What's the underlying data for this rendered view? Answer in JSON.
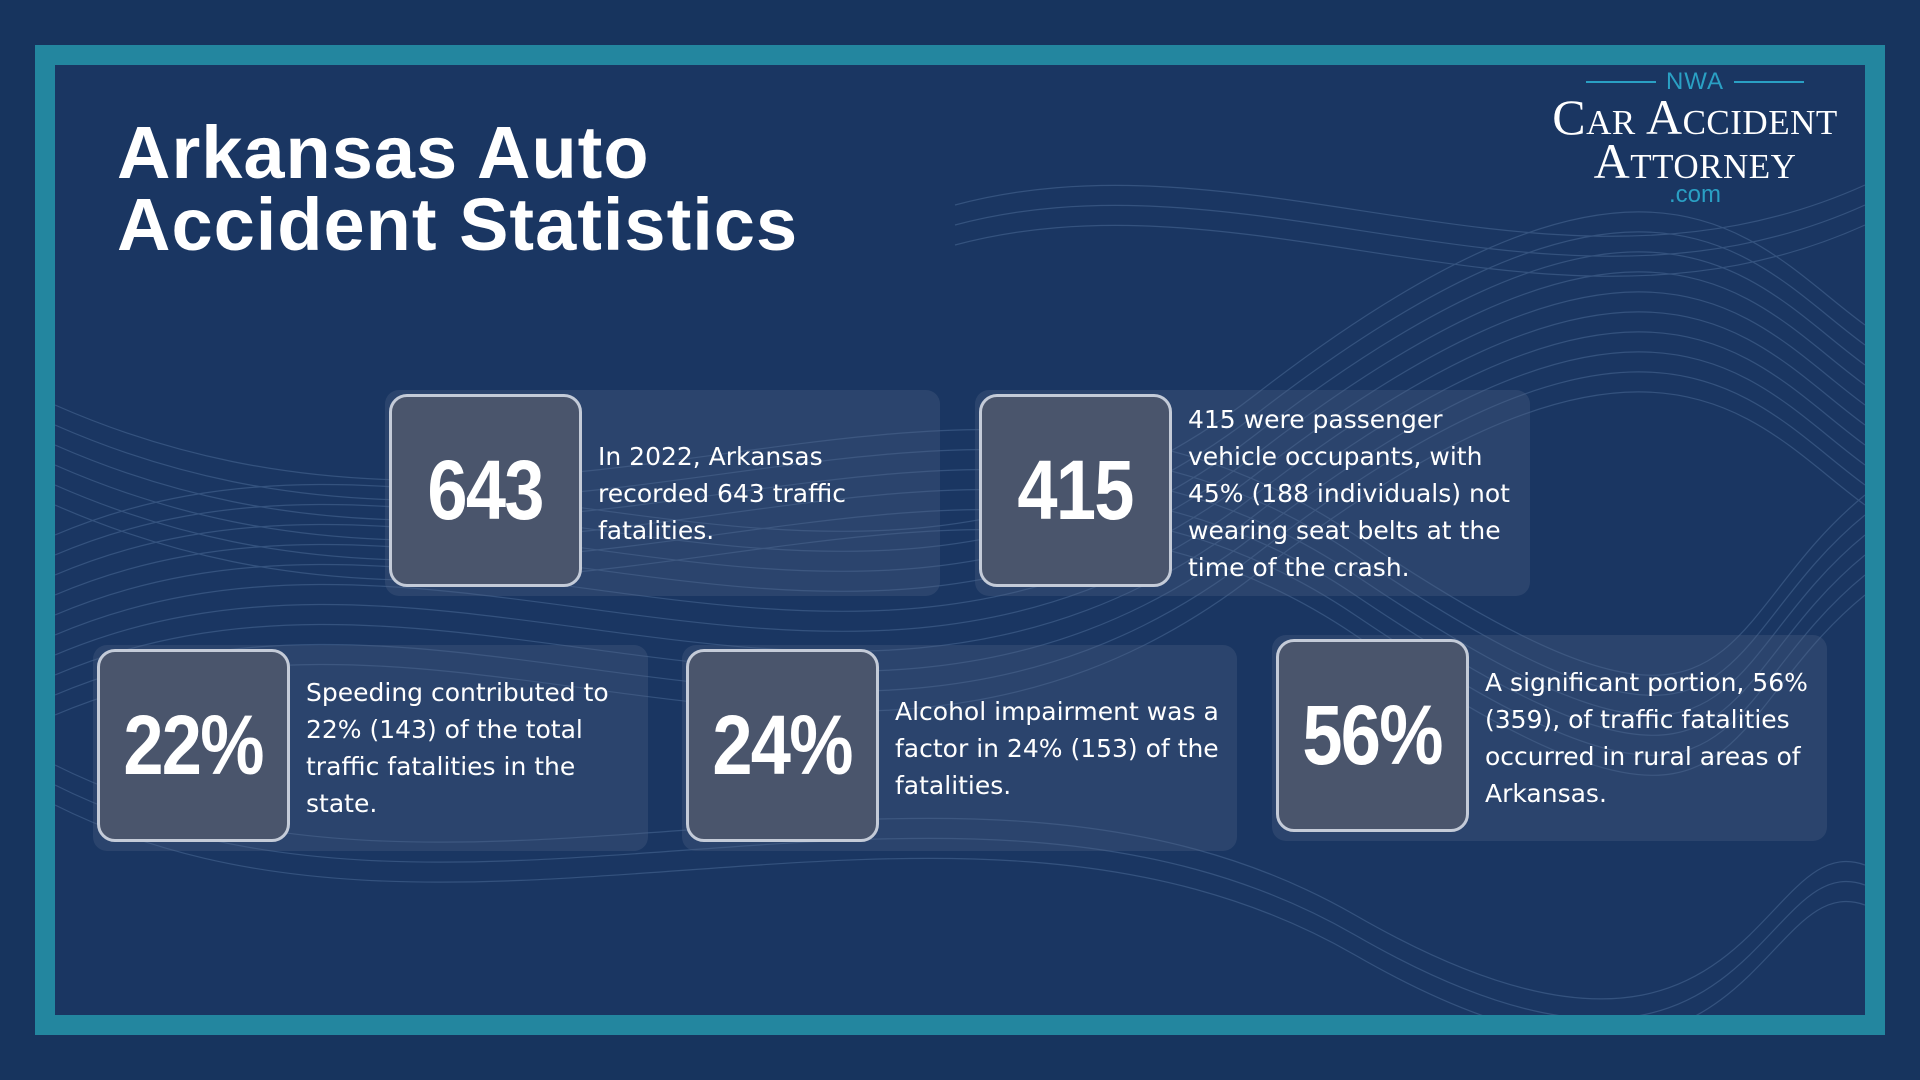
{
  "title": {
    "line1": "Arkansas Auto",
    "line2": "Accident Statistics"
  },
  "logo": {
    "top": "NWA",
    "line1": "Car Accident",
    "line2": "Attorney",
    "suffix": ".com"
  },
  "colors": {
    "background": "#1a3662",
    "frame": "#23869f",
    "accent": "#2aa0c4",
    "stat_box": "#4a556c"
  },
  "stats": [
    {
      "value": "643",
      "text": " In 2022, Arkansas recorded 643 traffic fatalities."
    },
    {
      "value": "415",
      "text": "415 were passenger vehicle occupants, with 45% (188 individuals) not wearing seat belts at the time of the crash."
    },
    {
      "value": "22%",
      "text": "Speeding contributed to 22% (143) of the total traffic fatalities in the state."
    },
    {
      "value": "24%",
      "text": "Alcohol impairment was a factor in 24% (153) of the fatalities."
    },
    {
      "value": "56%",
      "text": "A significant portion, 56% (359), of traffic fatalities occurred in rural areas of Arkansas."
    }
  ]
}
